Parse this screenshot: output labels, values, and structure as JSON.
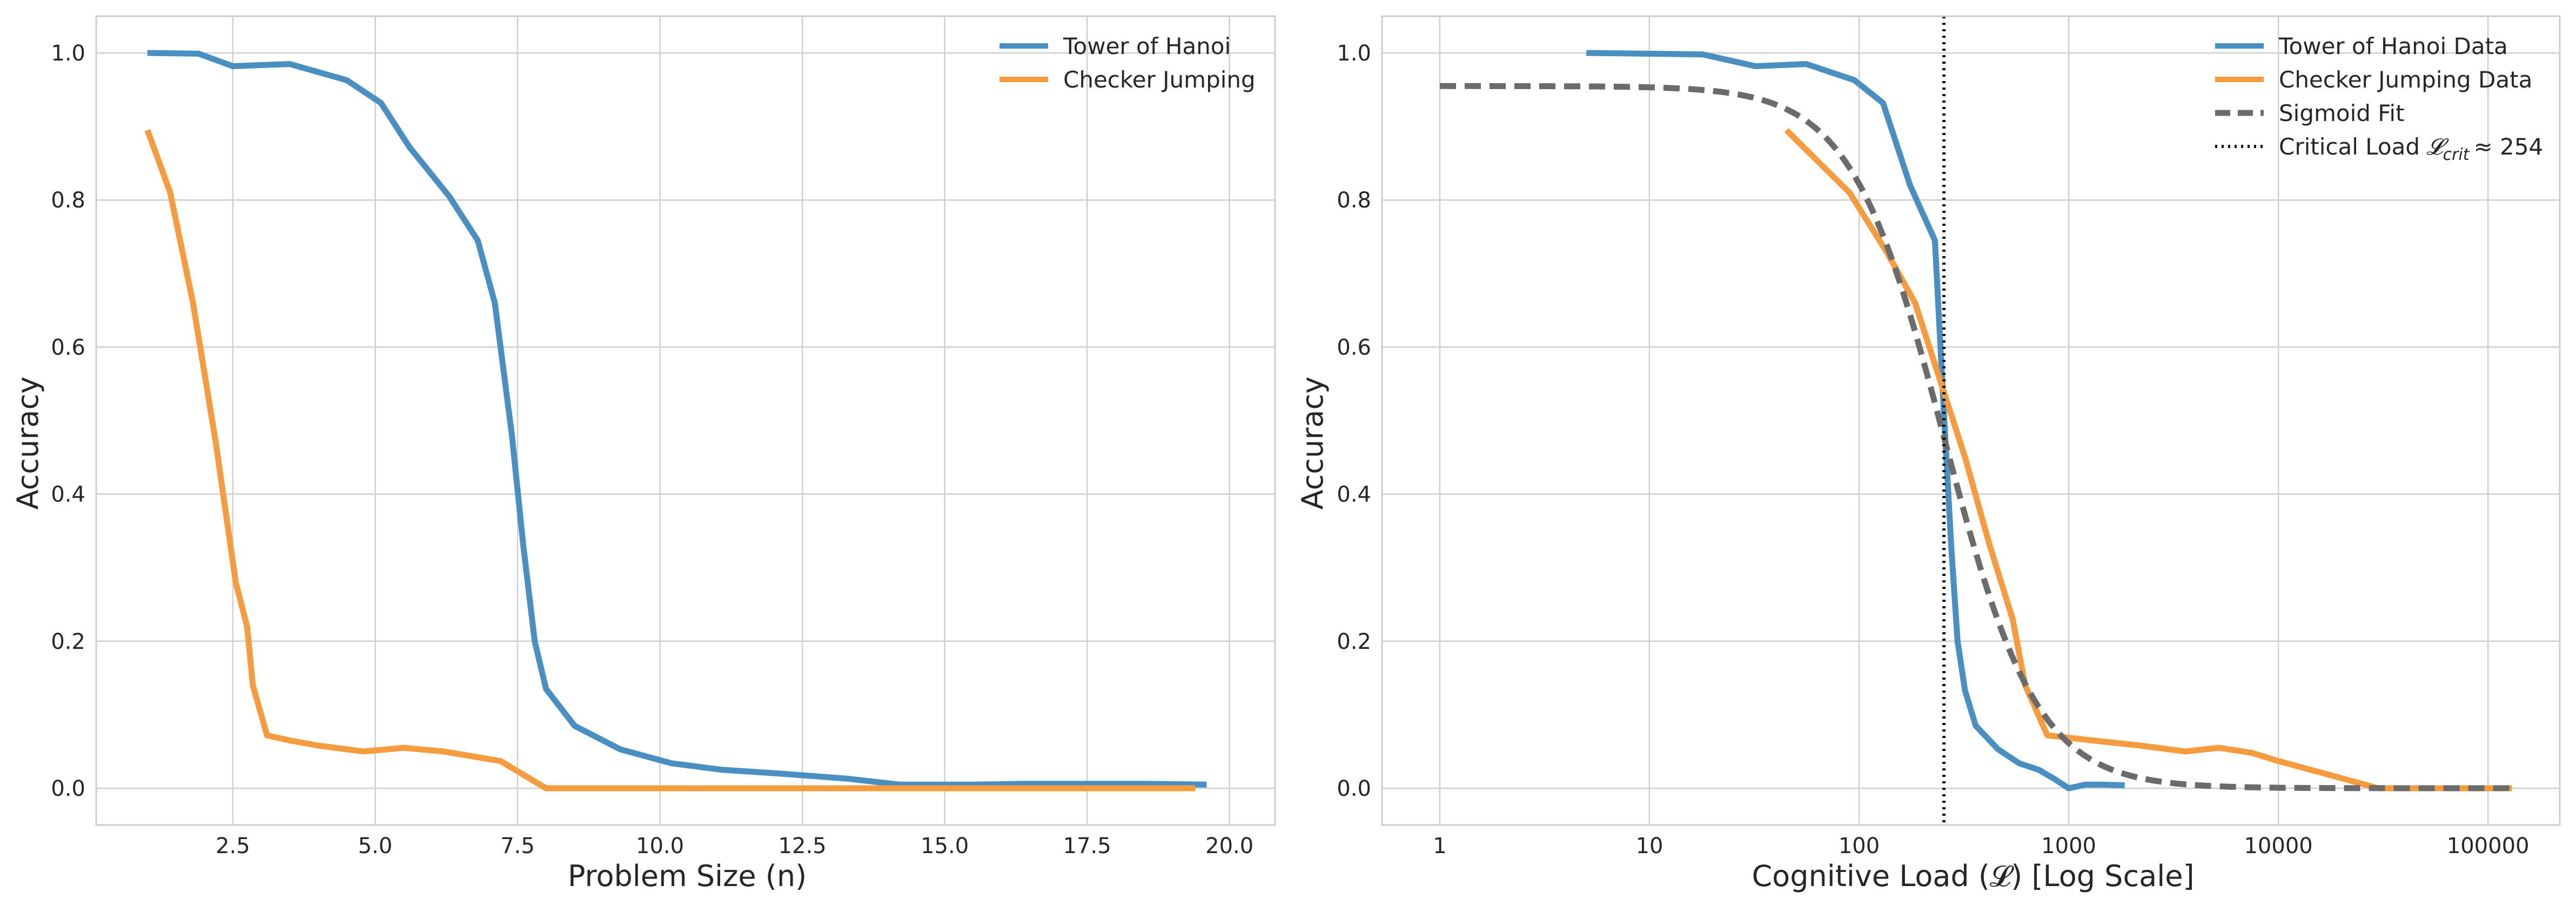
{
  "colors": {
    "tower": "#4a8fc2",
    "checker": "#f79b3f",
    "sigmoid": "#6b6b6b",
    "critical": "#111111",
    "grid": "#cfcfcf",
    "frame": "#cccccc"
  },
  "chart_data": [
    {
      "type": "line",
      "xlabel": "Problem Size (n)",
      "ylabel": "Accuracy",
      "xlim": [
        0.1,
        20.8
      ],
      "ylim": [
        -0.05,
        1.05
      ],
      "x_scale": "linear",
      "xticks": [
        2.5,
        5.0,
        7.5,
        10.0,
        12.5,
        15.0,
        17.5,
        20.0
      ],
      "xtick_labels": [
        "2.5",
        "5.0",
        "7.5",
        "10.0",
        "12.5",
        "15.0",
        "17.5",
        "20.0"
      ],
      "yticks": [
        0.0,
        0.2,
        0.4,
        0.6,
        0.8,
        1.0
      ],
      "ytick_labels": [
        "0.0",
        "0.2",
        "0.4",
        "0.6",
        "0.8",
        "1.0"
      ],
      "grid": true,
      "legend_position": "top-right",
      "series": [
        {
          "name": "Tower of Hanoi",
          "color_key": "tower",
          "style": "solid",
          "x": [
            1,
            1.9,
            2.5,
            3.5,
            4.5,
            5.1,
            5.6,
            6.3,
            6.8,
            7.1,
            7.4,
            7.6,
            7.8,
            8.0,
            8.5,
            9.3,
            10.2,
            11.1,
            12.1,
            13.3,
            14.2,
            15.5,
            16.4,
            17.5,
            18.5,
            19.6
          ],
          "y": [
            1.0,
            0.999,
            0.982,
            0.985,
            0.963,
            0.932,
            0.872,
            0.805,
            0.745,
            0.66,
            0.48,
            0.33,
            0.2,
            0.135,
            0.085,
            0.053,
            0.034,
            0.025,
            0.02,
            0.013,
            0.005,
            0.005,
            0.006,
            0.006,
            0.006,
            0.005
          ]
        },
        {
          "name": "Checker Jumping",
          "color_key": "checker",
          "style": "solid",
          "x": [
            1,
            1.4,
            1.8,
            2.2,
            2.55,
            2.75,
            2.85,
            3.1,
            3.5,
            4.0,
            4.8,
            5.5,
            6.2,
            7.2,
            8.0,
            9.0,
            10.0,
            12.0,
            14.0,
            16.0,
            18.0,
            19.4
          ],
          "y": [
            0.895,
            0.81,
            0.66,
            0.47,
            0.28,
            0.22,
            0.14,
            0.072,
            0.065,
            0.058,
            0.05,
            0.055,
            0.05,
            0.037,
            0.0,
            0.0,
            0.0,
            0.0,
            0.0,
            0.0,
            0.0,
            0.0
          ]
        }
      ]
    },
    {
      "type": "line",
      "xlabel": "Cognitive Load (𝓛) [Log Scale]",
      "ylabel": "Accuracy",
      "xlim": [
        0.53,
        220000
      ],
      "ylim": [
        -0.05,
        1.05
      ],
      "x_scale": "log",
      "xticks": [
        1,
        10,
        100,
        1000,
        10000,
        100000
      ],
      "xtick_labels": [
        "1",
        "10",
        "100",
        "1000",
        "10000",
        "100000"
      ],
      "yticks": [
        0.0,
        0.2,
        0.4,
        0.6,
        0.8,
        1.0
      ],
      "ytick_labels": [
        "0.0",
        "0.2",
        "0.4",
        "0.6",
        "0.8",
        "1.0"
      ],
      "grid": true,
      "legend_position": "top-right",
      "critical_load": 254,
      "series": [
        {
          "name": "Tower of Hanoi Data",
          "color_key": "tower",
          "style": "solid",
          "x": [
            5,
            10,
            18,
            32,
            56,
            95,
            130,
            175,
            230,
            255,
            275,
            295,
            320,
            360,
            460,
            580,
            720,
            850,
            1000,
            1200,
            1450,
            1850
          ],
          "y": [
            1.0,
            0.999,
            0.998,
            0.982,
            0.985,
            0.963,
            0.932,
            0.82,
            0.745,
            0.5,
            0.33,
            0.2,
            0.133,
            0.085,
            0.053,
            0.034,
            0.025,
            0.013,
            0.0,
            0.005,
            0.005,
            0.004
          ]
        },
        {
          "name": "Checker Jumping Data",
          "color_key": "checker",
          "style": "solid",
          "x": [
            45,
            90,
            135,
            185,
            240,
            320,
            420,
            540,
            620,
            790,
            1300,
            2200,
            3600,
            5200,
            7500,
            10000,
            30000,
            130000
          ],
          "y": [
            0.895,
            0.81,
            0.73,
            0.66,
            0.56,
            0.45,
            0.33,
            0.23,
            0.14,
            0.072,
            0.065,
            0.058,
            0.05,
            0.055,
            0.048,
            0.037,
            0.0,
            0.0
          ]
        },
        {
          "name": "Sigmoid Fit",
          "color_key": "sigmoid",
          "style": "dashed",
          "function": "logistic_log10",
          "L": 0.955,
          "k": 4.5,
          "x0": 254,
          "xrange": [
            1,
            130000
          ]
        },
        {
          "name": "Critical Load",
          "legend_suffix": "≈ 254",
          "color_key": "critical",
          "style": "dotted",
          "vertical_line_at": 254
        }
      ]
    }
  ]
}
